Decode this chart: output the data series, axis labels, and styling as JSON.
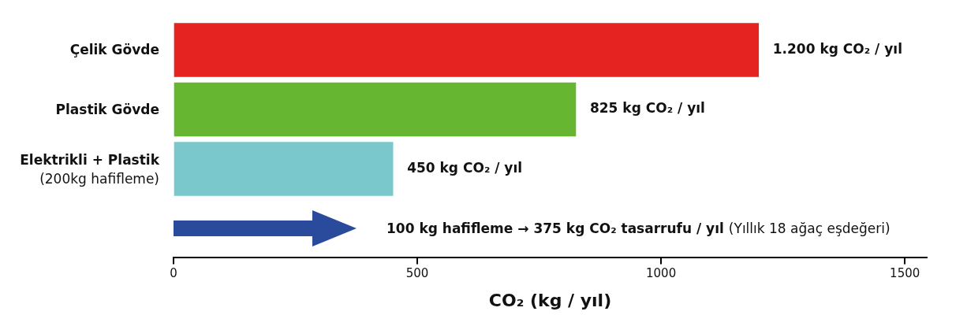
{
  "chart_data": {
    "type": "bar",
    "orientation": "horizontal",
    "categories": [
      "Çelik Gövde",
      "Plastik Gövde",
      "Elektrikli + Plastik\n(200kg hafifleme)"
    ],
    "values": [
      1200,
      825,
      450
    ],
    "colors": [
      "#e52421",
      "#67b631",
      "#7ac8cc"
    ],
    "value_labels": [
      "1.200 kg CO₂ / yıl",
      "825 kg CO₂ / yıl",
      "450 kg CO₂ / yıl"
    ],
    "xlabel": "CO₂ (kg / yıl)",
    "xlim": [
      0,
      1545
    ],
    "xticks": [
      0,
      500,
      1000,
      1500
    ],
    "annotations": [
      "100 kg hafifleme → 375 kg CO₂ tasarrufu / yıl",
      "(Yıllık 18 ağaç eşdeğeri)"
    ]
  }
}
